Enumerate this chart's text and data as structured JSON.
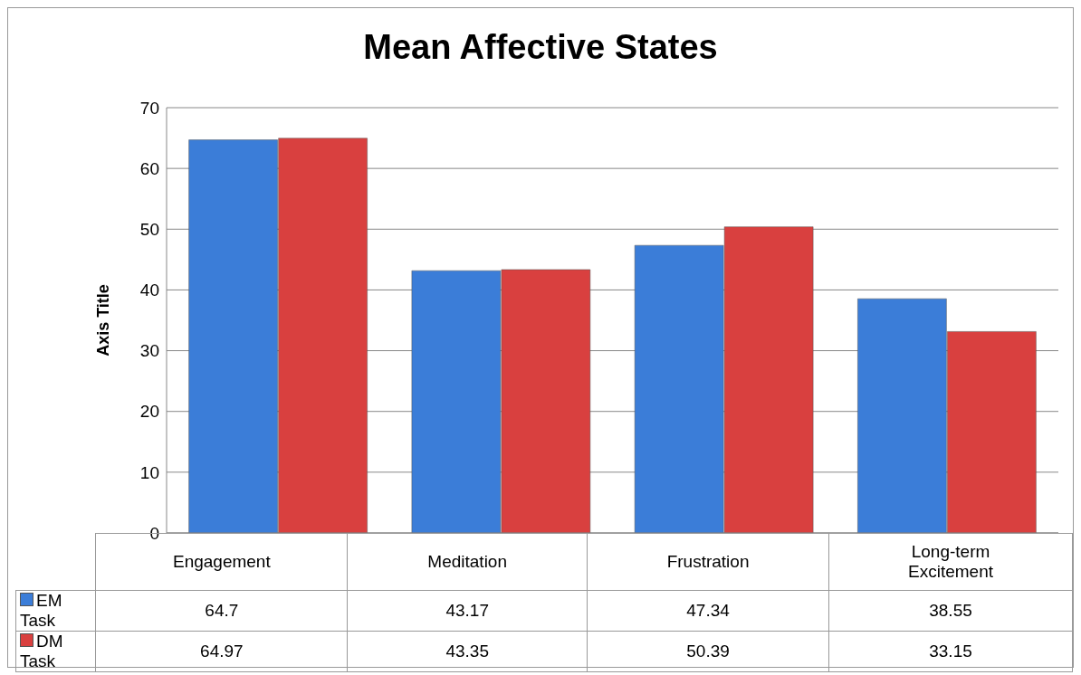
{
  "chart_data": {
    "type": "bar",
    "title": "Mean Affective States",
    "ylabel": "Axis Title",
    "categories": [
      "Engagement",
      "Meditation",
      "Frustration",
      "Long-term Excitement"
    ],
    "series": [
      {
        "name": "EM Task",
        "color": "#3b7dd8",
        "values": [
          64.7,
          43.17,
          47.34,
          38.55
        ]
      },
      {
        "name": "DM Task",
        "color": "#d9403f",
        "values": [
          64.97,
          43.35,
          50.39,
          33.15
        ]
      }
    ],
    "ylim": [
      0,
      70
    ],
    "yticks": [
      0,
      10,
      20,
      30,
      40,
      50,
      60,
      70
    ],
    "grid": "y",
    "legend": "bottom",
    "data_labels": true
  }
}
